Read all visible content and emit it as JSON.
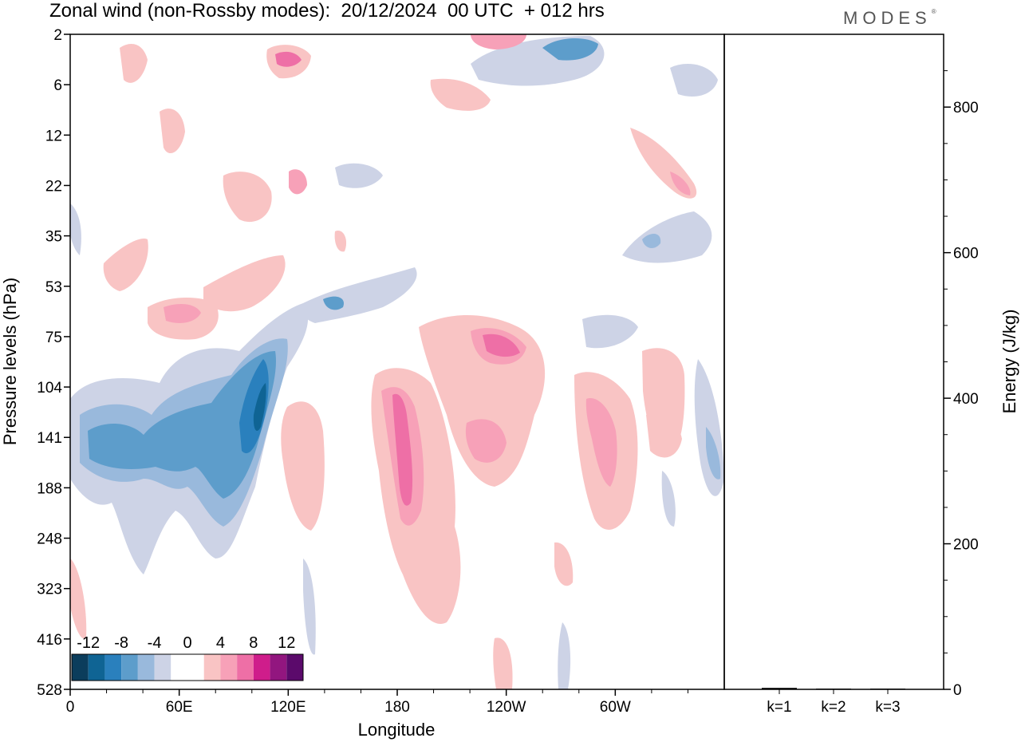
{
  "header": {
    "title": "Zonal wind (non-Rossby modes):  20/12/2024  00 UTC  + 012 hrs",
    "brand": "MODES",
    "brand_mark": "®"
  },
  "chart_data": [
    {
      "type": "heatmap",
      "title": "Zonal wind (non-Rossby modes):  20/12/2024  00 UTC  + 012 hrs",
      "xlabel": "Longitude",
      "ylabel": "Pressure levels (hPa)",
      "x_ticks": [
        "0",
        "60E",
        "120E",
        "180",
        "120W",
        "60W"
      ],
      "y_ticks": [
        "2",
        "6",
        "12",
        "22",
        "35",
        "53",
        "75",
        "104",
        "141",
        "188",
        "248",
        "323",
        "416",
        "528"
      ],
      "colorbar": {
        "labels": [
          "-12",
          "-8",
          "-4",
          "0",
          "4",
          "8",
          "12"
        ],
        "colors": [
          "#0b3d5c",
          "#0f6494",
          "#2a80bd",
          "#5d9dcb",
          "#99b9dc",
          "#cdd3e6",
          "#ffffff",
          "#ffffff",
          "#f9c4c4",
          "#f7a1b8",
          "#ee6fa6",
          "#cf1d8b",
          "#92167f",
          "#5b0a6b"
        ]
      },
      "features": [
        {
          "lon": 95,
          "level": "141",
          "sign": "negative",
          "peak": -12
        },
        {
          "lon": 55,
          "level": "141",
          "sign": "negative",
          "peak": -8
        },
        {
          "lon": 20,
          "level": "141",
          "sign": "negative",
          "peak": -8
        },
        {
          "lon": 188,
          "level": "188",
          "sign": "positive",
          "peak": 7
        },
        {
          "lon": 240,
          "level": "75",
          "sign": "positive",
          "peak": 8
        },
        {
          "lon": 227,
          "level": "141",
          "sign": "positive",
          "peak": 5
        },
        {
          "lon": 295,
          "level": "141",
          "sign": "positive",
          "peak": 5
        },
        {
          "lon": 288,
          "level": "2",
          "sign": "negative",
          "peak": -8
        },
        {
          "lon": 118,
          "level": "6",
          "sign": "positive",
          "peak": 7
        },
        {
          "lon": 50,
          "level": "75",
          "sign": "positive",
          "peak": 5
        }
      ]
    },
    {
      "type": "bar",
      "categories": [
        "k=1",
        "k=2",
        "k=3"
      ],
      "values": [
        2,
        1,
        1
      ],
      "ylabel": "Energy (J/kg)",
      "ylim": [
        0,
        900
      ],
      "y_ticks": [
        0,
        200,
        400,
        600,
        800
      ]
    }
  ]
}
